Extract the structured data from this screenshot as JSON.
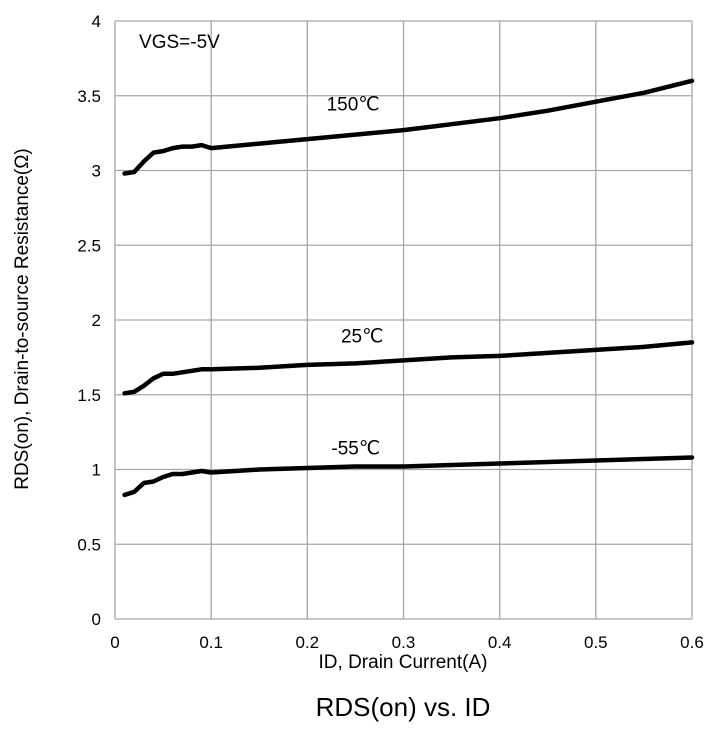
{
  "chart_data": {
    "type": "line",
    "caption": "RDS(on) vs.  ID",
    "xlabel": "ID, Drain Current(A)",
    "ylabel": "RDS(on), Drain-to-source Resistance(Ω)",
    "xlim": [
      0,
      0.6
    ],
    "ylim": [
      0,
      4
    ],
    "xticks": [
      "0",
      "0.1",
      "0.2",
      "0.3",
      "0.4",
      "0.5",
      "0.6"
    ],
    "yticks": [
      "0",
      "0.5",
      "1",
      "1.5",
      "2",
      "2.5",
      "3",
      "3.5",
      "4"
    ],
    "grid": true,
    "annotations": [
      {
        "text": "VGS=-5V",
        "x": 0.025,
        "y": 3.82
      },
      {
        "text": "150℃",
        "x": 0.22,
        "y": 3.4
      },
      {
        "text": "25℃",
        "x": 0.235,
        "y": 1.85
      },
      {
        "text": "-55℃",
        "x": 0.225,
        "y": 1.1
      }
    ],
    "series": [
      {
        "name": "150℃",
        "x": [
          0.01,
          0.02,
          0.03,
          0.04,
          0.05,
          0.06,
          0.07,
          0.08,
          0.09,
          0.1,
          0.15,
          0.2,
          0.25,
          0.3,
          0.35,
          0.4,
          0.45,
          0.5,
          0.55,
          0.6
        ],
        "y": [
          2.98,
          2.99,
          3.06,
          3.12,
          3.13,
          3.15,
          3.16,
          3.16,
          3.17,
          3.15,
          3.18,
          3.21,
          3.24,
          3.27,
          3.31,
          3.35,
          3.4,
          3.46,
          3.52,
          3.6
        ]
      },
      {
        "name": "25℃",
        "x": [
          0.01,
          0.02,
          0.03,
          0.04,
          0.05,
          0.06,
          0.07,
          0.08,
          0.09,
          0.1,
          0.15,
          0.2,
          0.25,
          0.3,
          0.35,
          0.4,
          0.45,
          0.5,
          0.55,
          0.6
        ],
        "y": [
          1.51,
          1.52,
          1.56,
          1.61,
          1.64,
          1.64,
          1.65,
          1.66,
          1.67,
          1.67,
          1.68,
          1.7,
          1.71,
          1.73,
          1.75,
          1.76,
          1.78,
          1.8,
          1.82,
          1.85
        ]
      },
      {
        "name": "-55℃",
        "x": [
          0.01,
          0.02,
          0.03,
          0.04,
          0.05,
          0.06,
          0.07,
          0.08,
          0.09,
          0.1,
          0.15,
          0.2,
          0.25,
          0.3,
          0.35,
          0.4,
          0.45,
          0.5,
          0.55,
          0.6
        ],
        "y": [
          0.83,
          0.85,
          0.91,
          0.92,
          0.95,
          0.97,
          0.97,
          0.98,
          0.99,
          0.98,
          1.0,
          1.01,
          1.02,
          1.02,
          1.03,
          1.04,
          1.05,
          1.06,
          1.07,
          1.08
        ]
      }
    ]
  }
}
